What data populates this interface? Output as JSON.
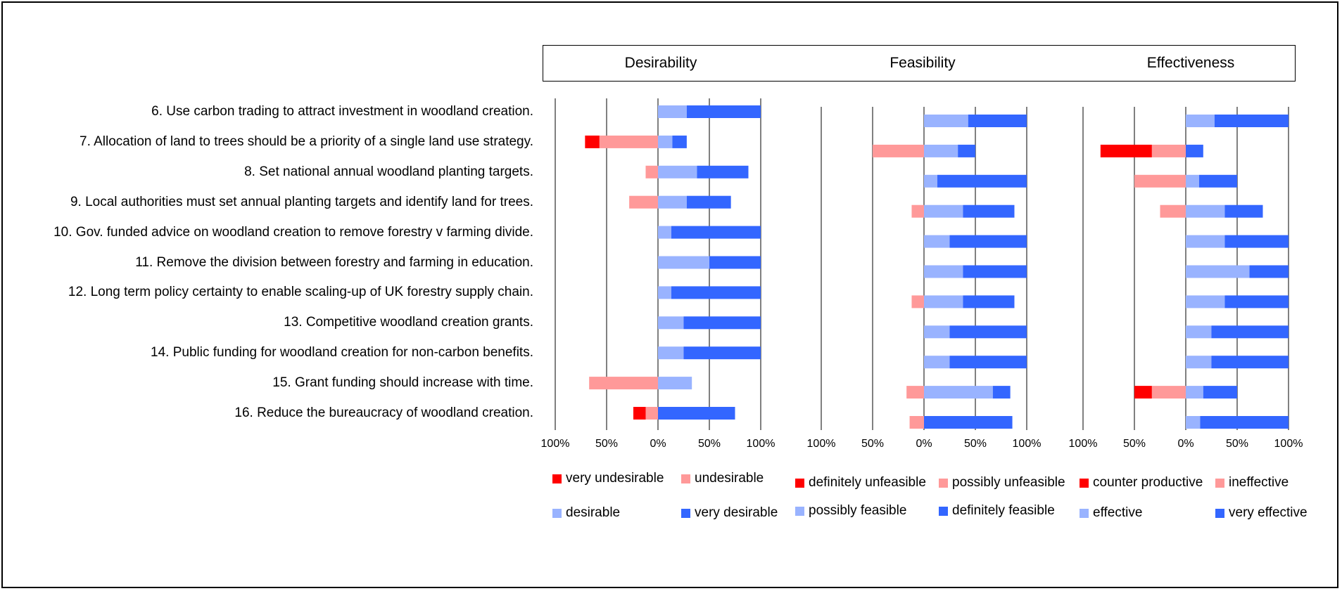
{
  "chart_data": [
    {
      "type": "bar",
      "title": "Desirability",
      "categories": [
        "6. Use carbon trading to attract investment in woodland creation.",
        "7. Allocation of land to trees should be a priority of a single land use strategy.",
        "8. Set national annual woodland planting targets.",
        "9. Local authorities must set annual planting targets and identify land for trees.",
        "10. Gov. funded advice on woodland creation to remove forestry v farming divide.",
        "11. Remove the division between forestry and farming in education.",
        "12. Long term policy certainty to enable scaling-up of UK forestry supply chain.",
        "13. Competitive woodland creation grants.",
        "14. Public funding for woodland creation for non-carbon benefits.",
        "15. Grant funding should increase with time.",
        "16. Reduce the bureaucracy of woodland creation."
      ],
      "xlim": [
        -100,
        100
      ],
      "tick_labels": [
        "100%",
        "50%",
        "0%",
        "50%",
        "100%"
      ],
      "series": [
        {
          "name": "very undesirable",
          "color": "#ff0000",
          "values": [
            0,
            14,
            0,
            0,
            0,
            0,
            0,
            0,
            0,
            0,
            12
          ],
          "side": "negative"
        },
        {
          "name": "undesirable",
          "color": "#ff9999",
          "values": [
            0,
            57,
            12,
            28,
            0,
            0,
            0,
            0,
            0,
            67,
            12
          ],
          "side": "negative"
        },
        {
          "name": "desirable",
          "color": "#99b3ff",
          "values": [
            28,
            14,
            38,
            28,
            13,
            50,
            13,
            25,
            25,
            33,
            0
          ],
          "side": "positive"
        },
        {
          "name": "very desirable",
          "color": "#3366ff",
          "values": [
            72,
            14,
            50,
            43,
            87,
            50,
            87,
            75,
            75,
            0,
            75
          ],
          "side": "positive"
        }
      ]
    },
    {
      "type": "bar",
      "title": "Feasibility",
      "categories_ref": "same as Desirability",
      "xlim": [
        -100,
        100
      ],
      "tick_labels": [
        "100%",
        "50%",
        "0%",
        "50%",
        "100%"
      ],
      "series": [
        {
          "name": "definitely unfeasible",
          "color": "#ff0000",
          "values": [
            0,
            0,
            0,
            0,
            0,
            0,
            0,
            0,
            0,
            0,
            0
          ],
          "side": "negative"
        },
        {
          "name": "possibly unfeasible",
          "color": "#ff9999",
          "values": [
            0,
            50,
            0,
            12,
            0,
            0,
            12,
            0,
            0,
            17,
            14
          ],
          "side": "negative"
        },
        {
          "name": "possibly feasible",
          "color": "#99b3ff",
          "values": [
            43,
            33,
            13,
            38,
            25,
            38,
            38,
            25,
            25,
            67,
            0
          ],
          "side": "positive"
        },
        {
          "name": "definitely feasible",
          "color": "#3366ff",
          "values": [
            57,
            17,
            87,
            50,
            75,
            62,
            50,
            75,
            75,
            17,
            86
          ],
          "side": "positive"
        }
      ]
    },
    {
      "type": "bar",
      "title": "Effectiveness",
      "categories_ref": "same as Desirability",
      "xlim": [
        -100,
        100
      ],
      "tick_labels": [
        "100%",
        "50%",
        "0%",
        "50%",
        "100%"
      ],
      "series": [
        {
          "name": "counter productive",
          "color": "#ff0000",
          "values": [
            0,
            50,
            0,
            0,
            0,
            0,
            0,
            0,
            0,
            17,
            0
          ],
          "side": "negative"
        },
        {
          "name": "ineffective",
          "color": "#ff9999",
          "values": [
            0,
            33,
            50,
            25,
            0,
            0,
            0,
            0,
            0,
            33,
            0
          ],
          "side": "negative"
        },
        {
          "name": "effective",
          "color": "#99b3ff",
          "values": [
            28,
            0,
            13,
            38,
            38,
            62,
            38,
            25,
            25,
            17,
            14
          ],
          "side": "positive"
        },
        {
          "name": "very effective",
          "color": "#3366ff",
          "values": [
            72,
            17,
            37,
            37,
            62,
            38,
            62,
            75,
            75,
            33,
            86
          ],
          "side": "positive"
        }
      ]
    }
  ],
  "legend": [
    {
      "label": "very undesirable",
      "color": "#ff0000"
    },
    {
      "label": "undesirable",
      "color": "#ff9999"
    },
    {
      "label": "desirable",
      "color": "#99b3ff"
    },
    {
      "label": "very desirable",
      "color": "#3366ff"
    },
    {
      "label": "definitely unfeasible",
      "color": "#ff0000"
    },
    {
      "label": "possibly unfeasible",
      "color": "#ff9999"
    },
    {
      "label": "possibly feasible",
      "color": "#99b3ff"
    },
    {
      "label": "definitely feasible",
      "color": "#3366ff"
    },
    {
      "label": "counter productive",
      "color": "#ff0000"
    },
    {
      "label": "ineffective",
      "color": "#ff9999"
    },
    {
      "label": "effective",
      "color": "#99b3ff"
    },
    {
      "label": "very effective",
      "color": "#3366ff"
    }
  ]
}
